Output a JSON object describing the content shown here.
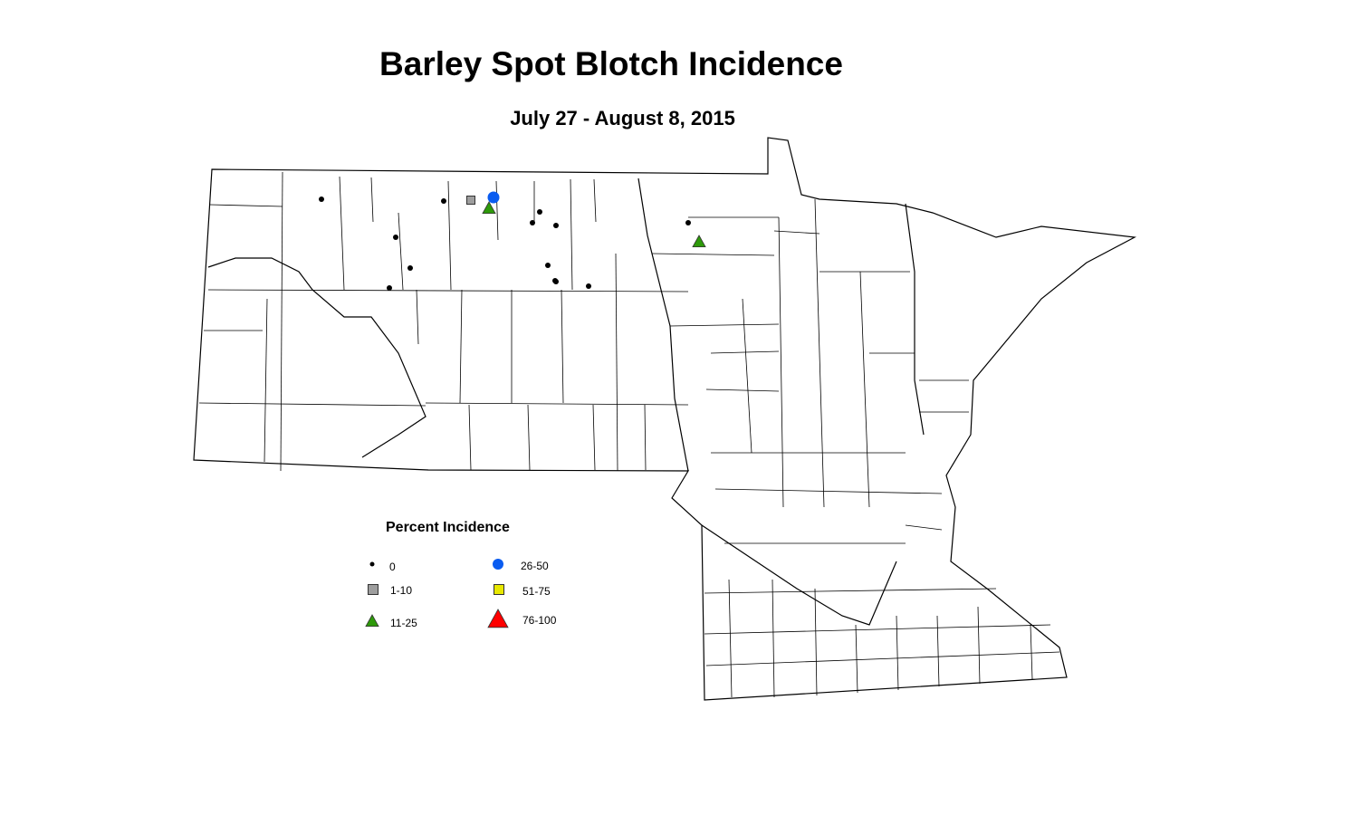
{
  "title": "Barley Spot Blotch Incidence",
  "subtitle": "July 27 - August 8, 2015",
  "legend": {
    "title": "Percent Incidence",
    "items": [
      {
        "label": "0",
        "symbol": "small-dot",
        "color": "#000000"
      },
      {
        "label": "1-10",
        "symbol": "square",
        "color": "#9e9e9e"
      },
      {
        "label": "11-25",
        "symbol": "triangle",
        "color": "#2e9a0a"
      },
      {
        "label": "26-50",
        "symbol": "circle",
        "color": "#0a5cf0"
      },
      {
        "label": "51-75",
        "symbol": "square",
        "color": "#e8e800"
      },
      {
        "label": "76-100",
        "symbol": "triangle",
        "color": "#ff0000"
      }
    ]
  },
  "observations": [
    "0",
    "0",
    "1-10",
    "26-50",
    "11-25",
    "0",
    "0",
    "0",
    "0",
    "0",
    "0",
    "0",
    "0",
    "0",
    "11-25",
    "0",
    "0"
  ]
}
